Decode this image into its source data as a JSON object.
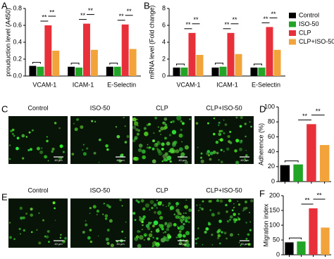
{
  "chart_data": [
    {
      "panel": "A",
      "type": "grouped_bar",
      "y_label": "prouduction level (A450)",
      "categories": [
        "VCAM-1",
        "ICAM-1",
        "E-Selectin"
      ],
      "series": [
        {
          "color": "#000000",
          "values": [
            0.12,
            0.11,
            0.11
          ]
        },
        {
          "color": "#22a526",
          "values": [
            0.11,
            0.1,
            0.11
          ]
        },
        {
          "color": "#e8303a",
          "values": [
            0.6,
            0.62,
            0.61
          ]
        },
        {
          "color": "#f2a43a",
          "values": [
            0.3,
            0.31,
            0.32
          ]
        }
      ],
      "ylim": [
        0,
        0.8
      ],
      "yticks": [
        {
          "value": 0,
          "label": "0.0"
        },
        0.2,
        0.4,
        0.6,
        0.8
      ],
      "annotations": [
        "**"
      ]
    },
    {
      "panel": "B",
      "type": "grouped_bar",
      "y_label": "mRNA level (Fold change)",
      "categories": [
        "VCAM-1",
        "ICAM-1",
        "E-Selectin"
      ],
      "series": [
        {
          "name": "Control",
          "color": "#000000",
          "values": [
            1.0,
            1.0,
            1.0
          ]
        },
        {
          "name": "ISO-50",
          "color": "#22a526",
          "values": [
            1.0,
            1.1,
            1.0
          ]
        },
        {
          "name": "CLP",
          "color": "#e8303a",
          "values": [
            5.1,
            5.1,
            5.8
          ]
        },
        {
          "name": "CLP+ISO-50",
          "color": "#f2a43a",
          "values": [
            2.5,
            2.6,
            3.1
          ]
        }
      ],
      "ylim": [
        0,
        8
      ],
      "yticks": [
        0,
        2,
        4,
        6,
        8
      ],
      "annotations": [
        "**"
      ]
    },
    {
      "panel": "D",
      "type": "bar",
      "y_label": "Adherence (%)",
      "values": [
        22,
        23,
        77,
        49
      ],
      "colors": [
        "#000000",
        "#22a526",
        "#e8303a",
        "#f2a43a"
      ],
      "ylim": [
        0,
        100
      ],
      "yticks": [
        0,
        20,
        40,
        60,
        80,
        100
      ],
      "annotations": [
        "**"
      ]
    },
    {
      "panel": "F",
      "type": "bar",
      "y_label": "Migration index",
      "values": [
        42,
        45,
        157,
        92
      ],
      "colors": [
        "#000000",
        "#22a526",
        "#e8303a",
        "#f2a43a"
      ],
      "ylim": [
        0,
        200
      ],
      "yticks": [
        0,
        50,
        100,
        150,
        200
      ],
      "annotations": [
        "**"
      ]
    }
  ],
  "images": [
    {
      "panel": "C",
      "labels": [
        "Control",
        "ISO-50",
        "CLP",
        "CLP+ISO-50"
      ],
      "scale_bar": "40 μm"
    },
    {
      "panel": "E",
      "labels": [
        "Control",
        "ISO-50",
        "CLP",
        "CLP+ISO-50"
      ],
      "scale_bar": "40 μm"
    }
  ]
}
